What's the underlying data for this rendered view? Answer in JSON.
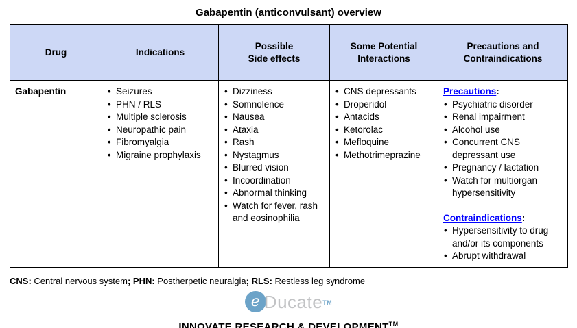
{
  "title": "Gabapentin (anticonvulsant) overview",
  "table": {
    "headers": [
      "Drug",
      "Indications",
      "Possible\nSide effects",
      "Some Potential\nInteractions",
      "Precautions and\nContraindications"
    ],
    "row": {
      "drug": "Gabapentin",
      "indications": [
        "Seizures",
        "PHN / RLS",
        "Multiple sclerosis",
        "Neuropathic pain",
        "Fibromyalgia",
        "Migraine prophylaxis"
      ],
      "side_effects": [
        "Dizziness",
        "Somnolence",
        "Nausea",
        "Ataxia",
        "Rash",
        "Nystagmus",
        "Blurred vision",
        "Incoordination",
        "Abnormal thinking",
        "Watch for fever, rash and eosinophilia"
      ],
      "interactions": [
        "CNS depressants",
        "Droperidol",
        "Antacids",
        "Ketorolac",
        "Mefloquine",
        "Methotrimeprazine"
      ],
      "precautions": {
        "heading": "Precautions",
        "colon": ":",
        "items": [
          "Psychiatric disorder",
          "Renal impairment",
          "Alcohol use",
          "Concurrent CNS depressant use",
          "Pregnancy / lactation",
          "Watch for multiorgan hypersensitivity"
        ]
      },
      "contraindications": {
        "heading": "Contraindications",
        "colon": ":",
        "items": [
          "Hypersensitivity to drug and/or its components",
          "Abrupt withdrawal"
        ]
      }
    }
  },
  "abbreviations": {
    "segments": [
      {
        "text": "CNS:",
        "bold": true
      },
      {
        "text": " Central nervous system",
        "bold": false
      },
      {
        "text": "; PHN:",
        "bold": true
      },
      {
        "text": " Postherpetic neuralgia",
        "bold": false
      },
      {
        "text": "; RLS:",
        "bold": true
      },
      {
        "text": " Restless leg syndrome",
        "bold": false
      }
    ]
  },
  "branding": {
    "logo": {
      "initial": "e",
      "rest": "Ducate",
      "tm": "TM"
    },
    "tagline": "INNOVATE RESEARCH & DEVELOPMENT",
    "tagline_tm": "TM"
  },
  "colors": {
    "header_bg": "#CDD8F6",
    "border": "#000000",
    "accent_blue": "#0101FF",
    "logo_circle": "#6CA3C8",
    "logo_gray": "#C2C3C5",
    "text": "#000000",
    "background": "#FFFFFF"
  }
}
